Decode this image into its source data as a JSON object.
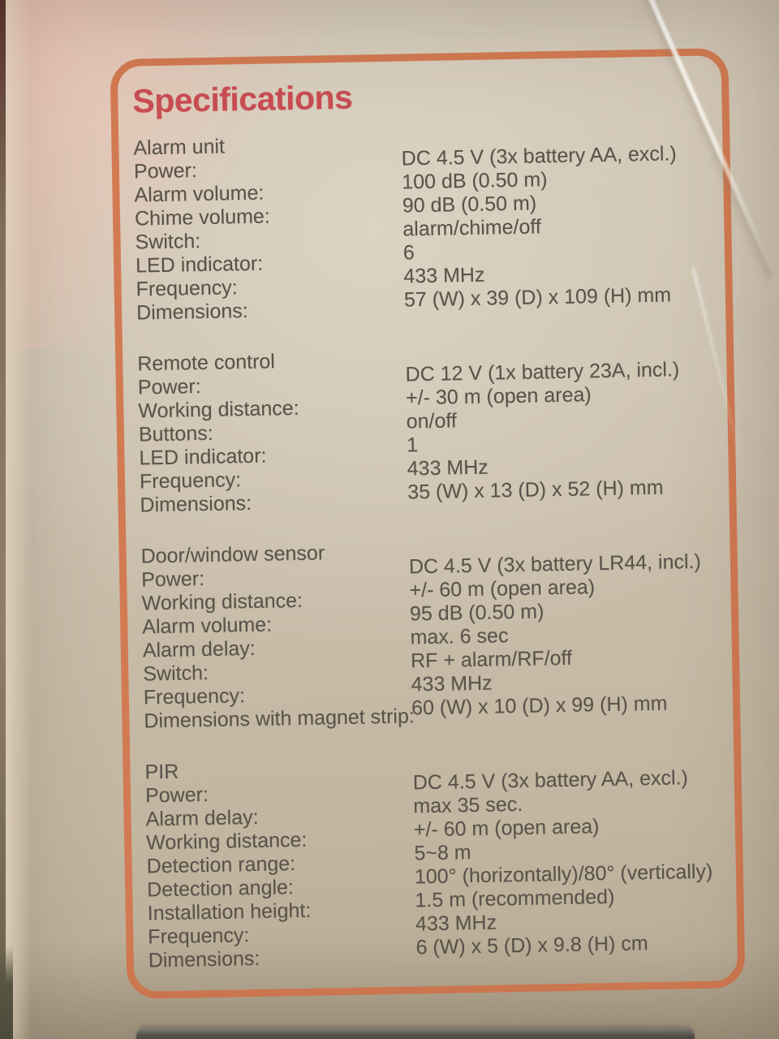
{
  "panel": {
    "title": "Specifications",
    "sections": [
      {
        "name": "Alarm unit",
        "rows": [
          {
            "label": "Power:",
            "value": "DC 4.5 V (3x battery AA, excl.)"
          },
          {
            "label": "Alarm volume:",
            "value": "100 dB (0.50 m)"
          },
          {
            "label": "Chime volume:",
            "value": "90 dB (0.50 m)"
          },
          {
            "label": "Switch:",
            "value": "alarm/chime/off"
          },
          {
            "label": "LED indicator:",
            "value": "6"
          },
          {
            "label": "Frequency:",
            "value": "433 MHz"
          },
          {
            "label": "Dimensions:",
            "value": "57 (W) x 39 (D) x 109 (H) mm"
          }
        ]
      },
      {
        "name": "Remote control",
        "rows": [
          {
            "label": "Power:",
            "value": "DC 12 V (1x battery 23A, incl.)"
          },
          {
            "label": "Working distance:",
            "value": "+/- 30 m (open area)"
          },
          {
            "label": "Buttons:",
            "value": "on/off"
          },
          {
            "label": "LED indicator:",
            "value": "1"
          },
          {
            "label": "Frequency:",
            "value": "433 MHz"
          },
          {
            "label": "Dimensions:",
            "value": "35 (W) x 13 (D) x 52 (H) mm"
          }
        ]
      },
      {
        "name": "Door/window sensor",
        "rows": [
          {
            "label": "Power:",
            "value": "DC 4.5 V (3x battery LR44, incl.)"
          },
          {
            "label": "Working distance:",
            "value": "+/- 60 m (open area)"
          },
          {
            "label": "Alarm volume:",
            "value": "95 dB (0.50 m)"
          },
          {
            "label": "Alarm delay:",
            "value": "max. 6 sec"
          },
          {
            "label": "Switch:",
            "value": "RF + alarm/RF/off"
          },
          {
            "label": "Frequency:",
            "value": "433 MHz"
          },
          {
            "label": "Dimensions with magnet strip:",
            "value": "60 (W) x 10 (D) x 99 (H) mm"
          }
        ]
      },
      {
        "name": "PIR",
        "rows": [
          {
            "label": "Power:",
            "value": "DC 4.5 V (3x battery AA, excl.)"
          },
          {
            "label": "Alarm delay:",
            "value": "max 35 sec."
          },
          {
            "label": "Working distance:",
            "value": "+/- 60 m (open area)"
          },
          {
            "label": "Detection range:",
            "value": "5~8 m"
          },
          {
            "label": "Detection angle:",
            "value": "100° (horizontally)/80° (vertically)"
          },
          {
            "label": "Installation height:",
            "value": "1.5 m (recommended)"
          },
          {
            "label": "Frequency:",
            "value": "433 MHz"
          },
          {
            "label": "Dimensions:",
            "value": "6 (W) x 5 (D) x 9.8 (H) cm"
          }
        ]
      }
    ],
    "colors": {
      "title_red": "#c84d53",
      "border_orange": "#d27a52",
      "ink": "#59534a",
      "cardboard": "#cbc0ad"
    }
  }
}
